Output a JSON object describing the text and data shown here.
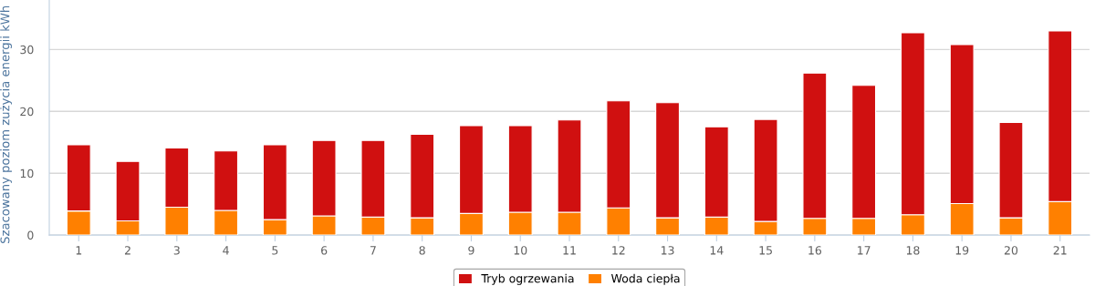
{
  "chart_data": {
    "type": "bar",
    "stacked": true,
    "ylabel": "Szacowany poziom zużycia energii kWh",
    "categories": [
      "1",
      "2",
      "3",
      "4",
      "5",
      "6",
      "7",
      "8",
      "9",
      "10",
      "11",
      "12",
      "13",
      "14",
      "15",
      "16",
      "17",
      "18",
      "19",
      "20",
      "21"
    ],
    "series": [
      {
        "name": "Woda ciepła",
        "color": "#ff8000",
        "values": [
          3.9,
          2.3,
          4.5,
          4.0,
          2.5,
          3.1,
          2.9,
          2.8,
          3.5,
          3.7,
          3.7,
          4.4,
          2.8,
          2.9,
          2.2,
          2.7,
          2.7,
          3.3,
          5.1,
          2.8,
          5.4
        ]
      },
      {
        "name": "Tryb ogrzewania",
        "color": "#d01010",
        "values": [
          10.7,
          9.6,
          9.6,
          9.6,
          12.1,
          12.2,
          12.4,
          13.5,
          14.2,
          14.0,
          14.9,
          17.3,
          18.6,
          14.6,
          16.5,
          23.5,
          21.5,
          29.4,
          25.7,
          15.4,
          27.6
        ]
      }
    ],
    "ylim": [
      0,
      38
    ],
    "yticks": [
      0,
      10,
      20,
      30
    ],
    "grid": "y",
    "legend": "bottom"
  }
}
